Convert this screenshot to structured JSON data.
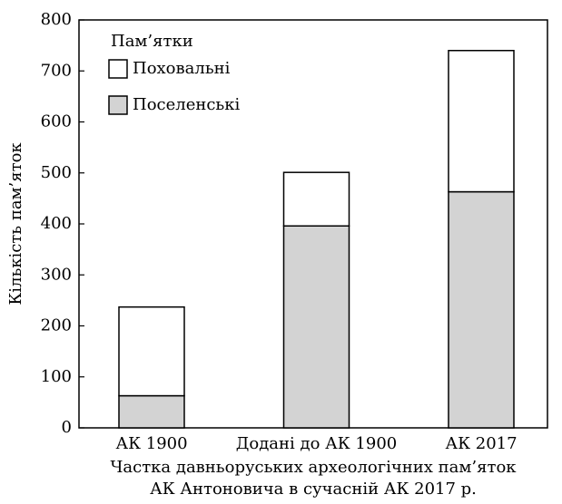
{
  "chart_data": {
    "type": "stacked_bar",
    "categories": [
      "АК 1900",
      "Додані до АК 1900",
      "АК 2017"
    ],
    "series": [
      {
        "name": "Поселенські",
        "color": "#d3d3d3",
        "values": [
          63,
          396,
          463
        ]
      },
      {
        "name": "Поховальні",
        "color": "#ffffff",
        "values": [
          174,
          105,
          277
        ]
      }
    ],
    "legend_title": "Пам’ятки",
    "ylabel": "Кількість пам’яток",
    "xlabel": [
      "Частка давньоруських археологічних пам’яток",
      "АК Антоновича в сучасній АК 2017 р."
    ],
    "ylim": [
      0,
      800
    ],
    "yticks": [
      0,
      100,
      200,
      300,
      400,
      500,
      600,
      700,
      800
    ],
    "legend": "upper left"
  }
}
